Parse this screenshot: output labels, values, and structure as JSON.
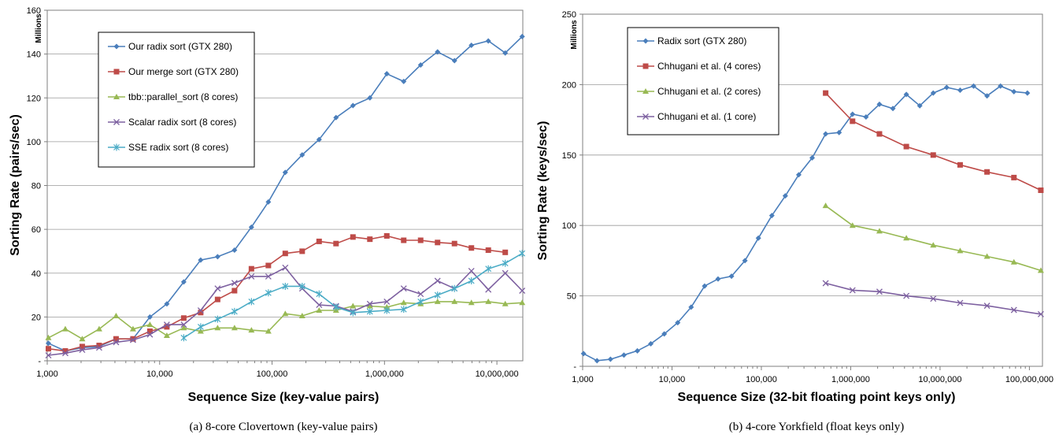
{
  "chart_data": [
    {
      "type": "line",
      "caption": "(a) 8-core Clovertown (key-value pairs)",
      "xlabel": "Sequence Size (key-value pairs)",
      "ylabel": "Sorting Rate (pairs/sec)",
      "y_unit": "Millions",
      "x_scale": "log",
      "xlim": [
        1000,
        17000000
      ],
      "x_ticks": [
        1000,
        10000,
        100000,
        1000000,
        10000000
      ],
      "x_tick_labels": [
        "1,000",
        "10,000",
        "100,000",
        "1,000,000",
        "10,000,000"
      ],
      "ylim": [
        0,
        160
      ],
      "y_ticks": [
        0,
        20,
        40,
        60,
        80,
        100,
        120,
        140,
        160
      ],
      "y_tick_labels": [
        "-",
        "20",
        "40",
        "60",
        "80",
        "100",
        "120",
        "140",
        "160"
      ],
      "grid": "horizontal",
      "legend_position": "top-left",
      "series": [
        {
          "name": "Our radix sort (GTX 280)",
          "color": "#4a7ebb",
          "marker": "diamond",
          "x": [
            1024,
            1448,
            2048,
            2896,
            4096,
            5793,
            8192,
            11585,
            16384,
            23170,
            32768,
            46341,
            65536,
            92682,
            131072,
            185364,
            262144,
            370728,
            524288,
            741455,
            1048576,
            1482910,
            2097152,
            2965820,
            4194304,
            5931641,
            8388608,
            11863283,
            16777216
          ],
          "y": [
            8,
            4.5,
            6,
            6.5,
            10,
            10,
            20,
            26,
            36,
            46,
            47.5,
            50.5,
            61,
            72.5,
            86,
            94,
            101,
            111,
            116.5,
            120,
            131,
            127.5,
            135,
            141,
            137,
            144,
            146,
            140.5,
            148
          ]
        },
        {
          "name": "Our merge sort (GTX 280)",
          "color": "#be4b48",
          "marker": "square",
          "x": [
            1024,
            1448,
            2048,
            2896,
            4096,
            5793,
            8192,
            11585,
            16384,
            23170,
            32768,
            46341,
            65536,
            92682,
            131072,
            185364,
            262144,
            370728,
            524288,
            741455,
            1048576,
            1482910,
            2097152,
            2965820,
            4194304,
            5931641,
            8388608,
            11863283
          ],
          "y": [
            5.5,
            4.5,
            6.5,
            7,
            10,
            10,
            13.5,
            15.5,
            19.5,
            22,
            28,
            32,
            42,
            43.5,
            49,
            50,
            54.5,
            53.5,
            56.5,
            55.5,
            57,
            55,
            55,
            54,
            53.5,
            51.5,
            50.5,
            49.5
          ]
        },
        {
          "name": "tbb::parallel_sort (8 cores)",
          "color": "#98b954",
          "marker": "triangle",
          "x": [
            1024,
            1448,
            2048,
            2896,
            4096,
            5793,
            8192,
            11585,
            16384,
            23170,
            32768,
            46341,
            65536,
            92682,
            131072,
            185364,
            262144,
            370728,
            524288,
            741455,
            1048576,
            1482910,
            2097152,
            2965820,
            4194304,
            5931641,
            8388608,
            11863283,
            16777216
          ],
          "y": [
            10.5,
            14.5,
            10,
            14.5,
            20.5,
            14.5,
            16.5,
            11.5,
            15,
            13.5,
            15,
            15,
            14,
            13.5,
            21.5,
            20.5,
            23,
            23,
            25,
            25,
            24.5,
            26.5,
            26,
            27,
            27,
            26.5,
            27,
            26,
            26.5
          ]
        },
        {
          "name": "Scalar radix sort (8 cores)",
          "color": "#7d60a0",
          "marker": "x",
          "x": [
            1024,
            1448,
            2048,
            2896,
            4096,
            5793,
            8192,
            11585,
            16384,
            23170,
            32768,
            46341,
            65536,
            92682,
            131072,
            185364,
            262144,
            370728,
            524288,
            741455,
            1048576,
            1482910,
            2097152,
            2965820,
            4194304,
            5931641,
            8388608,
            11863283,
            16777216
          ],
          "y": [
            2.5,
            3.5,
            5,
            6,
            8.5,
            9.5,
            12,
            16.5,
            16.5,
            23,
            33,
            35.5,
            38.5,
            38.5,
            42.5,
            33,
            25.5,
            25,
            22.5,
            26,
            27,
            33,
            30.5,
            36.5,
            33,
            41,
            32.5,
            40,
            32
          ]
        },
        {
          "name": "SSE radix sort (8 cores)",
          "color": "#4bacc6",
          "marker": "star",
          "x": [
            16384,
            23170,
            32768,
            46341,
            65536,
            92682,
            131072,
            185364,
            262144,
            370728,
            524288,
            741455,
            1048576,
            1482910,
            2097152,
            2965820,
            4194304,
            5931641,
            8388608,
            11863283,
            16777216
          ],
          "y": [
            10.5,
            15.5,
            19,
            22.5,
            27,
            31,
            34,
            34,
            30.5,
            24.5,
            22,
            22.5,
            23,
            23.5,
            27,
            30,
            33,
            36.5,
            42,
            44.5,
            49
          ]
        }
      ]
    },
    {
      "type": "line",
      "caption": "(b) 4-core Yorkfield (float keys only)",
      "xlabel": "Sequence Size (32-bit floating point keys only)",
      "ylabel": "Sorting Rate (keys/sec)",
      "y_unit": "Millions",
      "x_scale": "log",
      "xlim": [
        1000,
        140000000
      ],
      "x_ticks": [
        1000,
        10000,
        100000,
        1000000,
        10000000,
        100000000
      ],
      "x_tick_labels": [
        "1,000",
        "10,000",
        "100,000",
        "1,000,000",
        "10,000,000",
        "100,000,000"
      ],
      "ylim": [
        0,
        250
      ],
      "y_ticks": [
        0,
        50,
        100,
        150,
        200,
        250
      ],
      "y_tick_labels": [
        "-",
        "50",
        "100",
        "150",
        "200",
        "250"
      ],
      "grid": "horizontal",
      "legend_position": "top-left",
      "series": [
        {
          "name": "Radix sort (GTX 280)",
          "color": "#4a7ebb",
          "marker": "diamond",
          "x": [
            1024,
            1448,
            2048,
            2896,
            4096,
            5793,
            8192,
            11585,
            16384,
            23170,
            32768,
            46341,
            65536,
            92682,
            131072,
            185364,
            262144,
            370728,
            524288,
            741455,
            1048576,
            1482910,
            2097152,
            2965820,
            4194304,
            5931641,
            8388608,
            11863283,
            16777216,
            23726566,
            33554432,
            47453132,
            67108864,
            94906265
          ],
          "y": [
            9,
            4,
            5,
            8,
            11,
            16,
            23,
            31,
            42,
            57,
            62,
            64,
            75,
            91,
            107,
            121,
            136,
            148,
            165,
            166,
            179,
            177,
            186,
            183,
            193,
            185,
            194,
            198,
            196,
            199,
            192,
            199,
            195,
            194
          ]
        },
        {
          "name": "Chhugani et al.  (4 cores)",
          "color": "#be4b48",
          "marker": "square",
          "x": [
            524288,
            1048576,
            2097152,
            4194304,
            8388608,
            16777216,
            33554432,
            67108864,
            134217728
          ],
          "y": [
            194,
            174,
            165,
            156,
            150,
            143,
            138,
            134,
            125
          ]
        },
        {
          "name": "Chhugani et al. (2 cores)",
          "color": "#98b954",
          "marker": "triangle",
          "x": [
            524288,
            1048576,
            2097152,
            4194304,
            8388608,
            16777216,
            33554432,
            67108864,
            134217728
          ],
          "y": [
            114,
            100,
            96,
            91,
            86,
            82,
            78,
            74,
            68
          ]
        },
        {
          "name": "Chhugani et al. (1 core)",
          "color": "#7d60a0",
          "marker": "x",
          "x": [
            524288,
            1048576,
            2097152,
            4194304,
            8388608,
            16777216,
            33554432,
            67108864,
            134217728
          ],
          "y": [
            59,
            54,
            53,
            50,
            48,
            45,
            43,
            40,
            37
          ]
        }
      ]
    }
  ]
}
